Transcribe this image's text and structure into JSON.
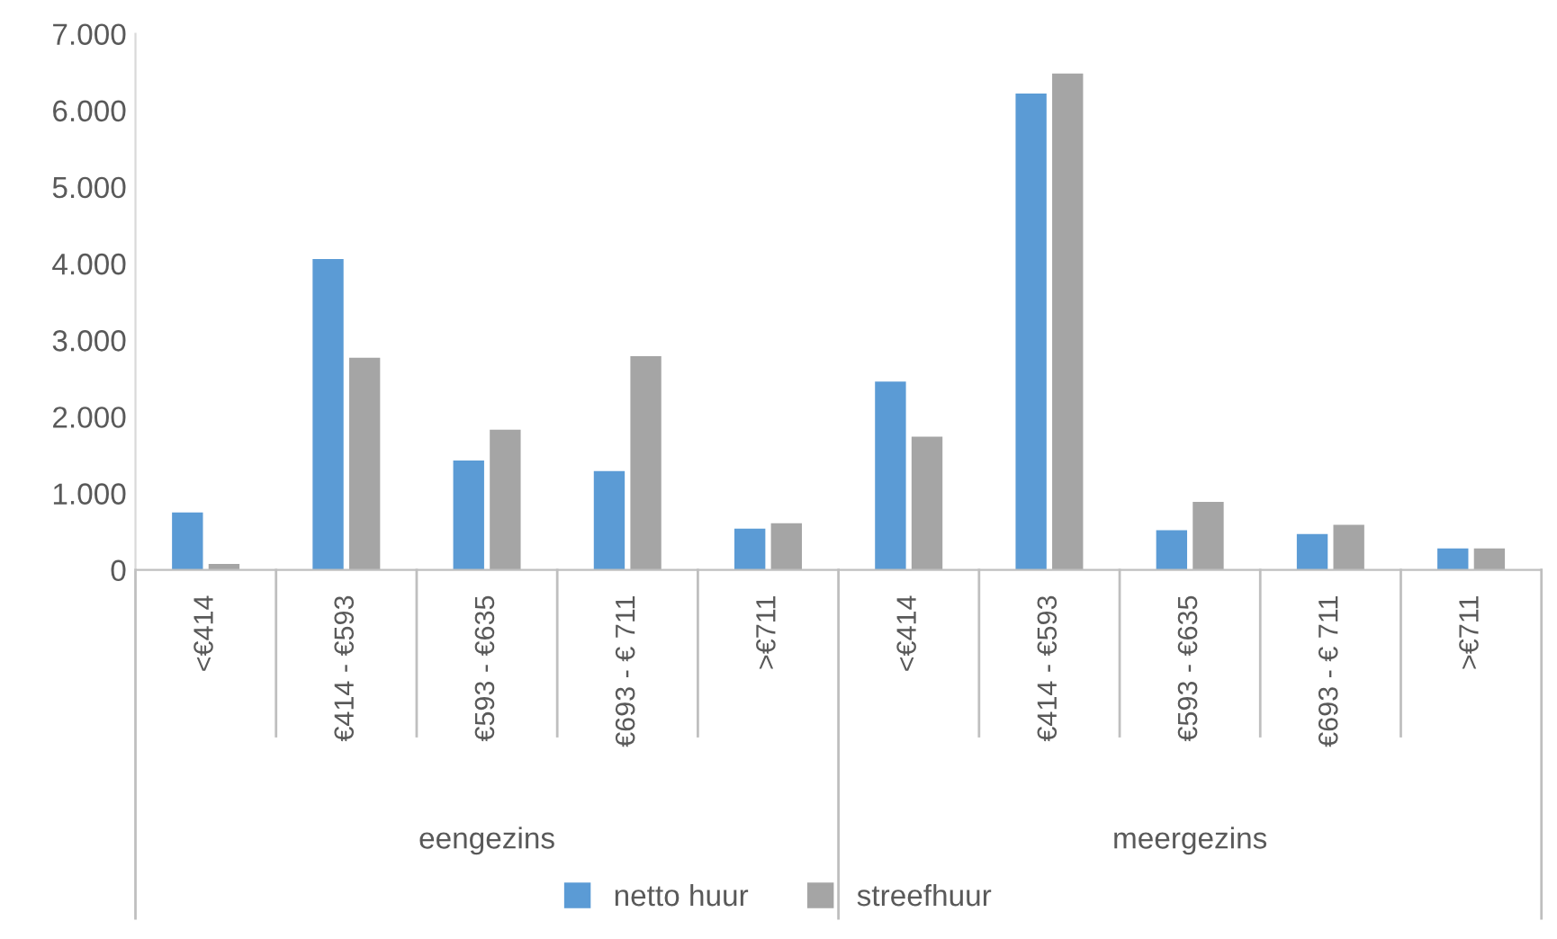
{
  "chart_data": {
    "type": "bar",
    "categories": [
      "<€414",
      "€414 - €593",
      "€593 - €635",
      "€693 - € 711",
      ">€711",
      "<€414",
      "€414 - €593",
      "€593 - €635",
      "€693 - € 711",
      ">€711"
    ],
    "series": [
      {
        "name": "netto huur",
        "color": "#5b9bd5",
        "values": [
          750,
          4060,
          1430,
          1290,
          540,
          2460,
          6220,
          520,
          470,
          280
        ]
      },
      {
        "name": "streefhuur",
        "color": "#a5a5a5",
        "values": [
          80,
          2770,
          1830,
          2790,
          610,
          1740,
          6480,
          890,
          590,
          280
        ]
      }
    ],
    "annotations": [
      "eengezins",
      "meergezins"
    ],
    "ylim": [
      0,
      7000
    ],
    "yticks": [
      {
        "value": 0,
        "label": "0"
      },
      {
        "value": 1000,
        "label": "1.000"
      },
      {
        "value": 2000,
        "label": "2.000"
      },
      {
        "value": 3000,
        "label": "3.000"
      },
      {
        "value": 4000,
        "label": "4.000"
      },
      {
        "value": 5000,
        "label": "5.000"
      },
      {
        "value": 6000,
        "label": "6.000"
      },
      {
        "value": 7000,
        "label": "7.000"
      }
    ],
    "grid": false,
    "legend": "bottom"
  }
}
